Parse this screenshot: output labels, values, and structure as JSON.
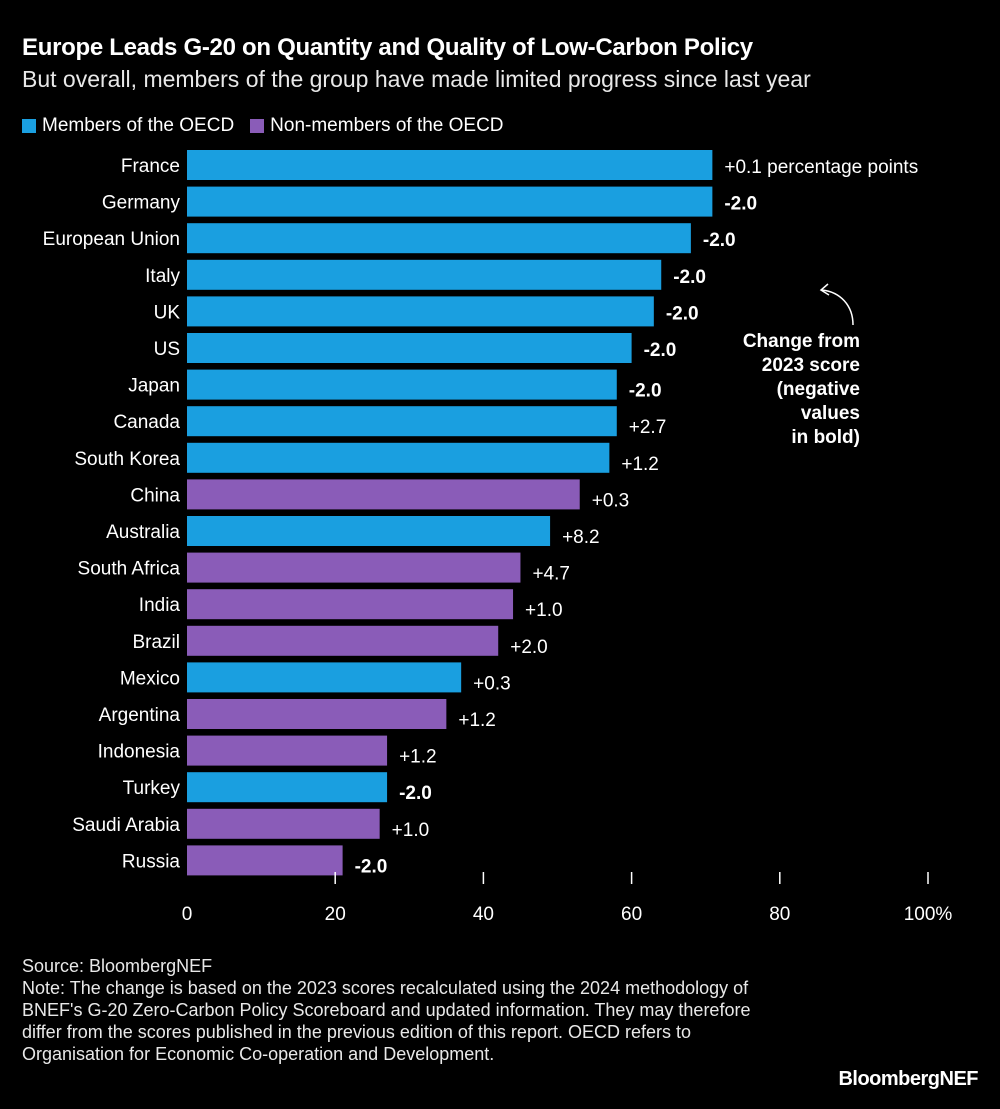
{
  "chart_data": {
    "type": "bar",
    "orientation": "horizontal",
    "title": "Europe Leads G-20 on Quantity and Quality of Low-Carbon Policy",
    "subtitle": "But overall, members of the group have made limited progress since last year",
    "legend": [
      {
        "name": "Members of the OECD",
        "color": "#1a9fe0"
      },
      {
        "name": "Non-members of the OECD",
        "color": "#8a5cb8"
      }
    ],
    "legend_position": "top-left",
    "categories": [
      "France",
      "Germany",
      "European Union",
      "Italy",
      "UK",
      "US",
      "Japan",
      "Canada",
      "South Korea",
      "China",
      "Australia",
      "South Africa",
      "India",
      "Brazil",
      "Mexico",
      "Argentina",
      "Indonesia",
      "Turkey",
      "Saudi Arabia",
      "Russia"
    ],
    "values": [
      70.9,
      70.9,
      68,
      64,
      63,
      60,
      58,
      58,
      57,
      53,
      49,
      45,
      44,
      42,
      37,
      35,
      27,
      27,
      26,
      21
    ],
    "groups": [
      "OECD",
      "OECD",
      "OECD",
      "OECD",
      "OECD",
      "OECD",
      "OECD",
      "OECD",
      "OECD",
      "Non-OECD",
      "OECD",
      "Non-OECD",
      "Non-OECD",
      "Non-OECD",
      "OECD",
      "Non-OECD",
      "Non-OECD",
      "OECD",
      "Non-OECD",
      "Non-OECD"
    ],
    "data_labels": [
      "+0.1 percentage points",
      "-2.0",
      "-2.0",
      "-2.0",
      "-2.0",
      "-2.0",
      "-2.0",
      "+2.7",
      "+1.2",
      "+0.3",
      "+8.2",
      "+4.7",
      "+1.0",
      "+2.0",
      "+0.3",
      "+1.2",
      "+1.2",
      "-2.0",
      "+1.0",
      "-2.0"
    ],
    "xlim": [
      0,
      100
    ],
    "x_ticks": [
      "0",
      "20",
      "40",
      "60",
      "80",
      "100%"
    ],
    "grid": false,
    "annotation": [
      "Change from",
      "2023 score",
      "(negative",
      "values",
      "in bold)"
    ]
  },
  "footer": {
    "source": "Source: BloombergNEF",
    "note": "Note: The change is based on the 2023 scores recalculated using the 2024 methodology of BNEF's G-20 Zero-Carbon Policy Scoreboard and updated information. They may therefore differ from the scores published in the previous edition of this report. OECD refers to Organisation for Economic Co-operation and Development."
  },
  "logo": "BloombergNEF"
}
